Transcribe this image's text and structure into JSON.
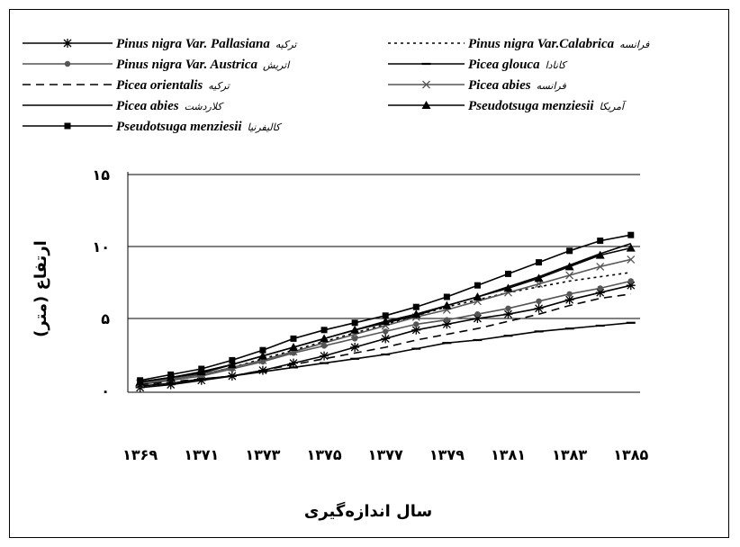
{
  "chart_data": {
    "type": "line",
    "title": "",
    "xlabel": "سال اندازه‌گیری",
    "ylabel": "ارتفاع (متر)",
    "ylim": [
      0,
      15
    ],
    "y_ticks": [
      "۰",
      "۵",
      "۱۰",
      "۱۵"
    ],
    "y_tick_values": [
      0,
      5,
      10,
      15
    ],
    "x_tick_labels": [
      "۱۳۶۹",
      "۱۳۷۱",
      "۱۳۷۳",
      "۱۳۷۵",
      "۱۳۷۷",
      "۱۳۷۹",
      "۱۳۸۱",
      "۱۳۸۳",
      "۱۳۸۵"
    ],
    "x": [
      1369,
      1370,
      1371,
      1372,
      1373,
      1374,
      1375,
      1376,
      1377,
      1378,
      1379,
      1380,
      1381,
      1382,
      1383,
      1384,
      1385
    ],
    "grid": "horizontal",
    "legend_position": "top",
    "series": [
      {
        "name": "Pinus nigra Var. Pallasiana",
        "origin": "ترکیه",
        "marker": "asterisk",
        "dash": "solid",
        "color": "#000000",
        "values": [
          0.2,
          0.4,
          0.7,
          1.0,
          1.4,
          1.9,
          2.4,
          3.0,
          3.6,
          4.2,
          4.6,
          5.0,
          5.3,
          5.7,
          6.3,
          6.8,
          7.3
        ]
      },
      {
        "name": "Pinus nigra Var.Calabrica",
        "origin": "فرانسه",
        "marker": "none",
        "dash": "dotted",
        "color": "#000000",
        "values": [
          0.5,
          0.8,
          1.1,
          1.6,
          2.2,
          2.8,
          3.4,
          4.0,
          4.6,
          5.2,
          5.8,
          6.3,
          6.8,
          7.2,
          7.6,
          7.9,
          8.2
        ]
      },
      {
        "name": "Pinus nigra Var. Austrica",
        "origin": "اتریش",
        "marker": "circle",
        "dash": "solid",
        "color": "#555555",
        "values": [
          0.4,
          0.7,
          1.0,
          1.5,
          2.0,
          2.6,
          3.1,
          3.6,
          4.1,
          4.6,
          4.9,
          5.3,
          5.7,
          6.2,
          6.7,
          7.1,
          7.6
        ]
      },
      {
        "name": "Picea glouca",
        "origin": "کانادا",
        "marker": "dash",
        "dash": "solid",
        "color": "#000000",
        "values": [
          0.3,
          0.5,
          0.8,
          1.0,
          1.3,
          1.6,
          1.9,
          2.2,
          2.5,
          2.9,
          3.3,
          3.5,
          3.8,
          4.1,
          4.3,
          4.5,
          4.7
        ]
      },
      {
        "name": "Picea orientalis",
        "origin": "ترکیه",
        "marker": "none",
        "dash": "dashed",
        "color": "#000000",
        "values": [
          0.4,
          0.6,
          0.8,
          1.0,
          1.4,
          1.8,
          2.2,
          2.6,
          3.0,
          3.5,
          3.9,
          4.3,
          4.8,
          5.3,
          5.9,
          6.4,
          6.7
        ]
      },
      {
        "name": "Picea abies",
        "origin": "فرانسه",
        "marker": "cross",
        "dash": "solid",
        "color": "#555555",
        "values": [
          0.5,
          0.8,
          1.1,
          1.6,
          2.1,
          2.7,
          3.3,
          3.9,
          4.5,
          5.1,
          5.6,
          6.2,
          6.8,
          7.4,
          8.0,
          8.6,
          9.1
        ]
      },
      {
        "name": "Picea abies",
        "origin": "کلاردشت",
        "marker": "none",
        "dash": "solid",
        "color": "#000000",
        "values": [
          0.6,
          0.9,
          1.2,
          1.8,
          2.4,
          3.0,
          3.6,
          4.2,
          4.7,
          5.2,
          5.9,
          6.5,
          7.2,
          7.9,
          8.7,
          9.5,
          10.2
        ]
      },
      {
        "name": "Pseudotsuga menziesii",
        "origin": "آمریکا",
        "marker": "triangle",
        "dash": "solid",
        "color": "#000000",
        "values": [
          0.6,
          0.9,
          1.3,
          1.8,
          2.4,
          3.0,
          3.6,
          4.2,
          4.8,
          5.3,
          5.9,
          6.5,
          7.1,
          7.8,
          8.6,
          9.4,
          9.9
        ]
      },
      {
        "name": "Pseudotsuga menziesii",
        "origin": "کالیفرنیا",
        "marker": "square",
        "dash": "solid",
        "color": "#000000",
        "values": [
          0.7,
          1.1,
          1.5,
          2.1,
          2.8,
          3.6,
          4.2,
          4.7,
          5.2,
          5.8,
          6.5,
          7.3,
          8.1,
          8.9,
          9.7,
          10.4,
          10.8
        ]
      }
    ]
  }
}
